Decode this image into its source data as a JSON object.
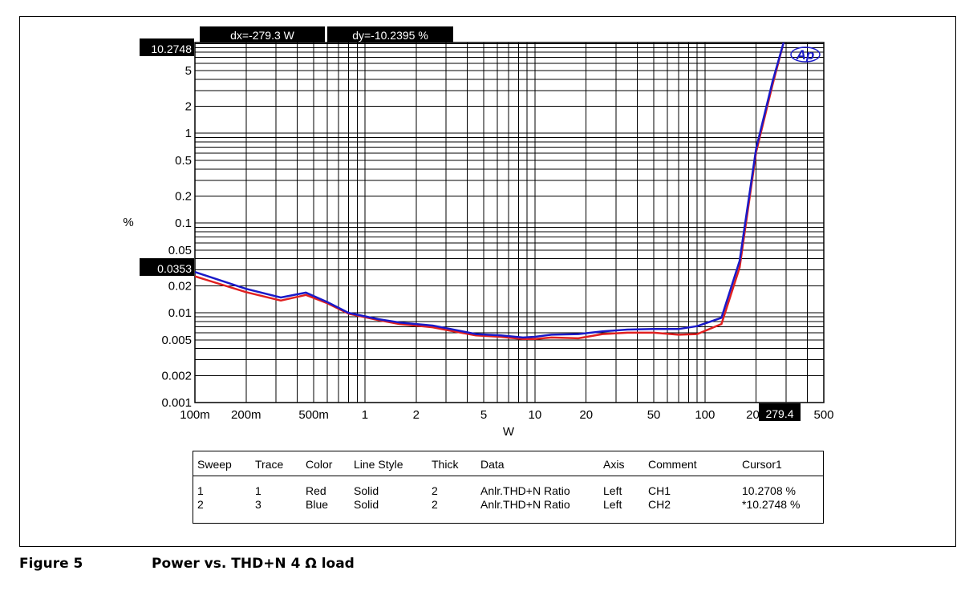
{
  "chart_data": {
    "type": "line",
    "xlabel": "W",
    "ylabel": "%",
    "x_scale": "log",
    "y_scale": "log",
    "xlim": [
      0.1,
      500
    ],
    "ylim": [
      0.001,
      10.2748
    ],
    "grid": true,
    "x_tick_labels": [
      {
        "v": 0.1,
        "t": "100m"
      },
      {
        "v": 0.2,
        "t": "200m"
      },
      {
        "v": 0.5,
        "t": "500m"
      },
      {
        "v": 1,
        "t": "1"
      },
      {
        "v": 2,
        "t": "2"
      },
      {
        "v": 5,
        "t": "5"
      },
      {
        "v": 10,
        "t": "10"
      },
      {
        "v": 20,
        "t": "20"
      },
      {
        "v": 50,
        "t": "50"
      },
      {
        "v": 100,
        "t": "100"
      },
      {
        "v": 200,
        "t": "200"
      },
      {
        "v": 500,
        "t": "500"
      }
    ],
    "y_tick_labels": [
      {
        "v": 0.001,
        "t": "0.001"
      },
      {
        "v": 0.002,
        "t": "0.002"
      },
      {
        "v": 0.005,
        "t": "0.005"
      },
      {
        "v": 0.01,
        "t": "0.01"
      },
      {
        "v": 0.02,
        "t": "0.02"
      },
      {
        "v": 0.05,
        "t": "0.05"
      },
      {
        "v": 0.1,
        "t": "0.1"
      },
      {
        "v": 0.2,
        "t": "0.2"
      },
      {
        "v": 0.5,
        "t": "0.5"
      },
      {
        "v": 1,
        "t": "1"
      },
      {
        "v": 2,
        "t": "2"
      },
      {
        "v": 5,
        "t": "5"
      }
    ],
    "series": [
      {
        "color": "#e02020",
        "x": [
          0.1,
          0.2,
          0.32,
          0.45,
          0.6,
          0.8,
          1.2,
          1.6,
          2.5,
          3.2,
          4.5,
          6.3,
          8.5,
          10,
          12.5,
          18,
          25,
          35,
          50,
          70,
          90,
          125,
          160,
          200,
          250,
          290
        ],
        "y": [
          0.0255,
          0.017,
          0.0137,
          0.0158,
          0.0128,
          0.0098,
          0.0083,
          0.0075,
          0.0069,
          0.0063,
          0.0056,
          0.0054,
          0.0051,
          0.0051,
          0.0053,
          0.0052,
          0.0058,
          0.006,
          0.006,
          0.0057,
          0.0058,
          0.0075,
          0.032,
          0.62,
          3.5,
          10.2708
        ]
      },
      {
        "color": "#1a1ac8",
        "x": [
          0.1,
          0.2,
          0.32,
          0.45,
          0.6,
          0.8,
          1.2,
          1.6,
          2.5,
          3.2,
          4.5,
          6.3,
          8.5,
          10,
          12.5,
          18,
          25,
          35,
          50,
          70,
          90,
          125,
          160,
          200,
          250,
          290
        ],
        "y": [
          0.0285,
          0.0185,
          0.0148,
          0.0168,
          0.0132,
          0.01,
          0.0085,
          0.0078,
          0.0072,
          0.0066,
          0.0058,
          0.0056,
          0.0053,
          0.0054,
          0.0057,
          0.0058,
          0.0062,
          0.0065,
          0.0066,
          0.0066,
          0.0071,
          0.0088,
          0.038,
          0.68,
          3.8,
          10.2748
        ]
      }
    ],
    "cursor": {
      "dx_label": "dx=-279.3  W",
      "dy_label": "dy=-10.2395 %",
      "y_top_label": "10.2748",
      "y_left_label": "0.0353",
      "x_label": "279.4"
    },
    "logo": "Ap"
  },
  "legend_table": {
    "headers": [
      "Sweep",
      "Trace",
      "Color",
      "Line Style",
      "Thick",
      "Data",
      "Axis",
      "Comment",
      "Cursor1"
    ],
    "rows": [
      [
        "1",
        "1",
        "Red",
        "Solid",
        "2",
        "Anlr.THD+N Ratio",
        "Left",
        "CH1",
        "10.2708  %"
      ],
      [
        "2",
        "3",
        "Blue",
        "Solid",
        "2",
        "Anlr.THD+N Ratio",
        "Left",
        "CH2",
        "*10.2748  %"
      ]
    ]
  },
  "caption": {
    "label": "Figure 5",
    "title": "Power vs. THD+N 4 Ω load"
  }
}
